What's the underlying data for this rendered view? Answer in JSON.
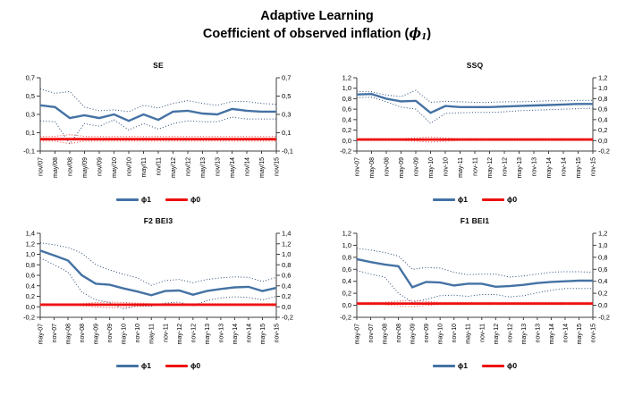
{
  "title": {
    "line1": "Adaptive Learning",
    "line2_prefix": "Coefficient of observed inflation (",
    "line2_symbol": "ϕ",
    "line2_subscript": "1",
    "line2_suffix": ")"
  },
  "colors": {
    "phi1_line": "#4472a4",
    "phi1_band": "#2b4a75",
    "phi0_line": "#ee0f0f",
    "phi0_band": "#f04040",
    "axis": "#404040",
    "text": "#000000"
  },
  "chart_data": [
    {
      "type": "line",
      "title": "SE",
      "categories": [
        "nov/07",
        "may/08",
        "nov/08",
        "may/09",
        "nov/09",
        "may/10",
        "nov/10",
        "may/11",
        "nov/11",
        "may/12",
        "nov/12",
        "may/13",
        "nov/13",
        "may/14",
        "nov/14",
        "may/15",
        "nov/15"
      ],
      "ylim": [
        -0.1,
        0.7
      ],
      "ytick_values": [
        0.7,
        0.5,
        0.3,
        0.1,
        -0.1
      ],
      "ytick_labels": [
        "0,7",
        "0,5",
        "0,3",
        "0,1",
        "-0,1"
      ],
      "grid": "off",
      "legend_position": "bottom",
      "series": [
        {
          "name": "ϕ1",
          "style": "solid",
          "color": "#4472a4",
          "values": [
            0.4,
            0.38,
            0.26,
            0.29,
            0.26,
            0.3,
            0.23,
            0.3,
            0.24,
            0.33,
            0.34,
            0.31,
            0.3,
            0.36,
            0.34,
            0.33,
            0.33
          ]
        },
        {
          "name": "ϕ1 upper band",
          "style": "dotted",
          "color": "#2b4a75",
          "values": [
            0.58,
            0.53,
            0.55,
            0.38,
            0.34,
            0.35,
            0.33,
            0.4,
            0.37,
            0.42,
            0.45,
            0.42,
            0.4,
            0.44,
            0.44,
            0.42,
            0.41
          ]
        },
        {
          "name": "ϕ1 lower band",
          "style": "dotted",
          "color": "#2b4a75",
          "values": [
            0.23,
            0.22,
            -0.02,
            0.2,
            0.17,
            0.24,
            0.13,
            0.2,
            0.14,
            0.2,
            0.23,
            0.22,
            0.22,
            0.27,
            0.25,
            0.25,
            0.25
          ]
        },
        {
          "name": "ϕ0",
          "style": "solid",
          "color": "#ee0f0f",
          "values": [
            0.03,
            0.03,
            0.03,
            0.03,
            0.03,
            0.03,
            0.03,
            0.03,
            0.03,
            0.03,
            0.03,
            0.03,
            0.03,
            0.03,
            0.03,
            0.03,
            0.03
          ]
        },
        {
          "name": "ϕ0 upper band",
          "style": "dotted",
          "color": "#f04040",
          "values": [
            0.06,
            0.06,
            0.08,
            0.06,
            0.06,
            0.06,
            0.06,
            0.06,
            0.06,
            0.06,
            0.06,
            0.06,
            0.06,
            0.06,
            0.06,
            0.06,
            0.06
          ]
        },
        {
          "name": "ϕ0 lower band",
          "style": "dotted",
          "color": "#f04040",
          "values": [
            0.01,
            0.01,
            -0.02,
            0.01,
            0.01,
            0.01,
            0.01,
            0.01,
            0.01,
            0.01,
            0.01,
            0.01,
            0.01,
            0.01,
            0.01,
            0.01,
            0.01
          ]
        }
      ],
      "legend": [
        {
          "label": "ϕ1",
          "color": "#4472a4"
        },
        {
          "label": "ϕ0",
          "color": "#ee0f0f"
        }
      ]
    },
    {
      "type": "line",
      "title": "SSQ",
      "categories": [
        "nov-07",
        "may-08",
        "nov-08",
        "may-09",
        "nov-09",
        "may-10",
        "nov-10",
        "may-11",
        "nov-11",
        "may-12",
        "nov-12",
        "may-13",
        "nov-13",
        "may-14",
        "nov-14",
        "may-15",
        "nov-15"
      ],
      "ylim": [
        -0.2,
        1.2
      ],
      "ytick_values": [
        1.2,
        1.0,
        0.8,
        0.6,
        0.4,
        0.2,
        0.0,
        -0.2
      ],
      "ytick_labels": [
        "1,2",
        "1,0",
        "0,8",
        "0,6",
        "0,4",
        "0,2",
        "0,0",
        "-0,2"
      ],
      "grid": "off",
      "legend_position": "bottom",
      "series": [
        {
          "name": "ϕ1",
          "style": "solid",
          "color": "#4472a4",
          "values": [
            0.88,
            0.89,
            0.8,
            0.75,
            0.76,
            0.53,
            0.66,
            0.64,
            0.64,
            0.64,
            0.65,
            0.66,
            0.67,
            0.68,
            0.69,
            0.7,
            0.7
          ]
        },
        {
          "name": "ϕ1 upper band",
          "style": "dotted",
          "color": "#2b4a75",
          "values": [
            0.94,
            0.93,
            0.87,
            0.84,
            0.96,
            0.73,
            0.75,
            0.74,
            0.73,
            0.73,
            0.74,
            0.74,
            0.75,
            0.76,
            0.76,
            0.77,
            0.77
          ]
        },
        {
          "name": "ϕ1 lower band",
          "style": "dotted",
          "color": "#2b4a75",
          "values": [
            0.82,
            0.83,
            0.74,
            0.64,
            0.6,
            0.33,
            0.52,
            0.53,
            0.54,
            0.54,
            0.55,
            0.57,
            0.58,
            0.59,
            0.6,
            0.61,
            0.62
          ]
        },
        {
          "name": "ϕ0",
          "style": "solid",
          "color": "#ee0f0f",
          "values": [
            0.02,
            0.02,
            0.02,
            0.02,
            0.02,
            0.02,
            0.02,
            0.02,
            0.02,
            0.02,
            0.02,
            0.02,
            0.02,
            0.02,
            0.02,
            0.02,
            0.02
          ]
        },
        {
          "name": "ϕ0 upper band",
          "style": "dotted",
          "color": "#f04040",
          "values": [
            0.04,
            0.04,
            0.04,
            0.04,
            0.05,
            0.07,
            0.05,
            0.04,
            0.04,
            0.04,
            0.04,
            0.04,
            0.04,
            0.04,
            0.04,
            0.04,
            0.04
          ]
        },
        {
          "name": "ϕ0 lower band",
          "style": "dotted",
          "color": "#f04040",
          "values": [
            0.0,
            0.0,
            0.0,
            0.0,
            -0.01,
            -0.03,
            -0.01,
            0.0,
            0.0,
            0.0,
            0.0,
            0.0,
            0.0,
            0.0,
            0.0,
            0.0,
            0.0
          ]
        }
      ],
      "legend": [
        {
          "label": "ϕ1",
          "color": "#4472a4"
        },
        {
          "label": "ϕ0",
          "color": "#ee0f0f"
        }
      ]
    },
    {
      "type": "line",
      "title": "F2 BEI3",
      "categories": [
        "may-07",
        "nov-07",
        "may-08",
        "nov-08",
        "may-09",
        "nov-09",
        "may-10",
        "nov-10",
        "may-11",
        "nov-11",
        "may-12",
        "nov-12",
        "may-13",
        "nov-13",
        "may-14",
        "nov-14",
        "may-15",
        "nov-15"
      ],
      "ylim": [
        -0.2,
        1.4
      ],
      "ytick_values": [
        1.4,
        1.2,
        1.0,
        0.8,
        0.6,
        0.4,
        0.2,
        0.0,
        -0.2
      ],
      "ytick_labels": [
        "1,4",
        "1,2",
        "1,0",
        "0,8",
        "0,6",
        "0,4",
        "0,2",
        "0,0",
        "-0,2"
      ],
      "grid": "off",
      "legend_position": "bottom",
      "series": [
        {
          "name": "ϕ1",
          "style": "solid",
          "color": "#4472a4",
          "values": [
            1.07,
            0.98,
            0.88,
            0.6,
            0.44,
            0.42,
            0.35,
            0.29,
            0.22,
            0.3,
            0.31,
            0.23,
            0.3,
            0.34,
            0.37,
            0.38,
            0.3,
            0.36
          ]
        },
        {
          "name": "ϕ1 upper band",
          "style": "dotted",
          "color": "#2b4a75",
          "values": [
            1.22,
            1.18,
            1.13,
            1.02,
            0.8,
            0.7,
            0.62,
            0.55,
            0.41,
            0.5,
            0.52,
            0.46,
            0.52,
            0.55,
            0.57,
            0.56,
            0.48,
            0.56
          ]
        },
        {
          "name": "ϕ1 lower band",
          "style": "dotted",
          "color": "#2b4a75",
          "values": [
            0.93,
            0.8,
            0.66,
            0.28,
            0.13,
            0.08,
            -0.04,
            0.02,
            0.01,
            0.07,
            0.09,
            0.02,
            0.12,
            0.17,
            0.19,
            0.18,
            0.13,
            0.2
          ]
        },
        {
          "name": "ϕ0",
          "style": "solid",
          "color": "#ee0f0f",
          "values": [
            0.04,
            0.04,
            0.04,
            0.04,
            0.04,
            0.04,
            0.04,
            0.04,
            0.04,
            0.04,
            0.04,
            0.04,
            0.04,
            0.04,
            0.04,
            0.04,
            0.04,
            0.04
          ]
        },
        {
          "name": "ϕ0 upper band",
          "style": "dotted",
          "color": "#f04040",
          "values": [
            0.06,
            0.06,
            0.06,
            0.06,
            0.08,
            0.09,
            0.08,
            0.07,
            0.06,
            0.06,
            0.06,
            0.06,
            0.06,
            0.06,
            0.06,
            0.06,
            0.06,
            0.06
          ]
        },
        {
          "name": "ϕ0 lower band",
          "style": "dotted",
          "color": "#f04040",
          "values": [
            0.02,
            0.02,
            0.02,
            0.02,
            0.0,
            -0.02,
            -0.01,
            0.01,
            0.02,
            0.02,
            0.02,
            0.02,
            0.02,
            0.02,
            0.02,
            0.02,
            0.02,
            0.02
          ]
        }
      ],
      "legend": [
        {
          "label": "ϕ1",
          "color": "#4472a4"
        },
        {
          "label": "ϕ0",
          "color": "#ee0f0f"
        }
      ]
    },
    {
      "type": "line",
      "title": "F1 BEI1",
      "categories": [
        "may-07",
        "nov-07",
        "may-08",
        "nov-08",
        "may-09",
        "nov-09",
        "may-10",
        "nov-10",
        "may-11",
        "nov-11",
        "may-12",
        "nov-12",
        "may-13",
        "nov-13",
        "may-14",
        "nov-14",
        "may-15",
        "nov-15"
      ],
      "ylim": [
        -0.2,
        1.2
      ],
      "ytick_values": [
        1.2,
        1.0,
        0.8,
        0.6,
        0.4,
        0.2,
        0.0,
        -0.2
      ],
      "ytick_labels": [
        "1,2",
        "1,0",
        "0,8",
        "0,6",
        "0,4",
        "0,2",
        "0,0",
        "-0,2"
      ],
      "grid": "off",
      "legend_position": "bottom",
      "series": [
        {
          "name": "ϕ1",
          "style": "solid",
          "color": "#4472a4",
          "values": [
            0.77,
            0.72,
            0.68,
            0.65,
            0.3,
            0.39,
            0.38,
            0.33,
            0.36,
            0.36,
            0.31,
            0.32,
            0.34,
            0.37,
            0.39,
            0.4,
            0.41,
            0.41
          ]
        },
        {
          "name": "ϕ1 upper band",
          "style": "dotted",
          "color": "#2b4a75",
          "values": [
            0.95,
            0.92,
            0.88,
            0.82,
            0.6,
            0.63,
            0.62,
            0.55,
            0.51,
            0.52,
            0.52,
            0.47,
            0.49,
            0.52,
            0.55,
            0.56,
            0.56,
            0.55
          ]
        },
        {
          "name": "ϕ1 lower band",
          "style": "dotted",
          "color": "#2b4a75",
          "values": [
            0.58,
            0.52,
            0.47,
            0.2,
            0.05,
            0.1,
            0.16,
            0.17,
            0.15,
            0.18,
            0.18,
            0.14,
            0.16,
            0.21,
            0.25,
            0.28,
            0.28,
            0.28
          ]
        },
        {
          "name": "ϕ0",
          "style": "solid",
          "color": "#ee0f0f",
          "values": [
            0.03,
            0.03,
            0.03,
            0.03,
            0.03,
            0.03,
            0.03,
            0.03,
            0.03,
            0.03,
            0.03,
            0.03,
            0.03,
            0.03,
            0.03,
            0.03,
            0.03,
            0.03
          ]
        },
        {
          "name": "ϕ0 upper band",
          "style": "dotted",
          "color": "#f04040",
          "values": [
            0.05,
            0.05,
            0.05,
            0.07,
            0.08,
            0.06,
            0.05,
            0.05,
            0.05,
            0.05,
            0.05,
            0.05,
            0.05,
            0.05,
            0.05,
            0.05,
            0.05,
            0.05
          ]
        },
        {
          "name": "ϕ0 lower band",
          "style": "dotted",
          "color": "#f04040",
          "values": [
            0.01,
            0.01,
            0.01,
            -0.01,
            -0.02,
            0.0,
            0.01,
            0.01,
            0.01,
            0.01,
            0.01,
            0.01,
            0.01,
            0.01,
            0.01,
            0.01,
            0.01,
            0.01
          ]
        }
      ],
      "legend": [
        {
          "label": "ϕ1",
          "color": "#4472a4"
        },
        {
          "label": "ϕ0",
          "color": "#ee0f0f"
        }
      ]
    }
  ]
}
